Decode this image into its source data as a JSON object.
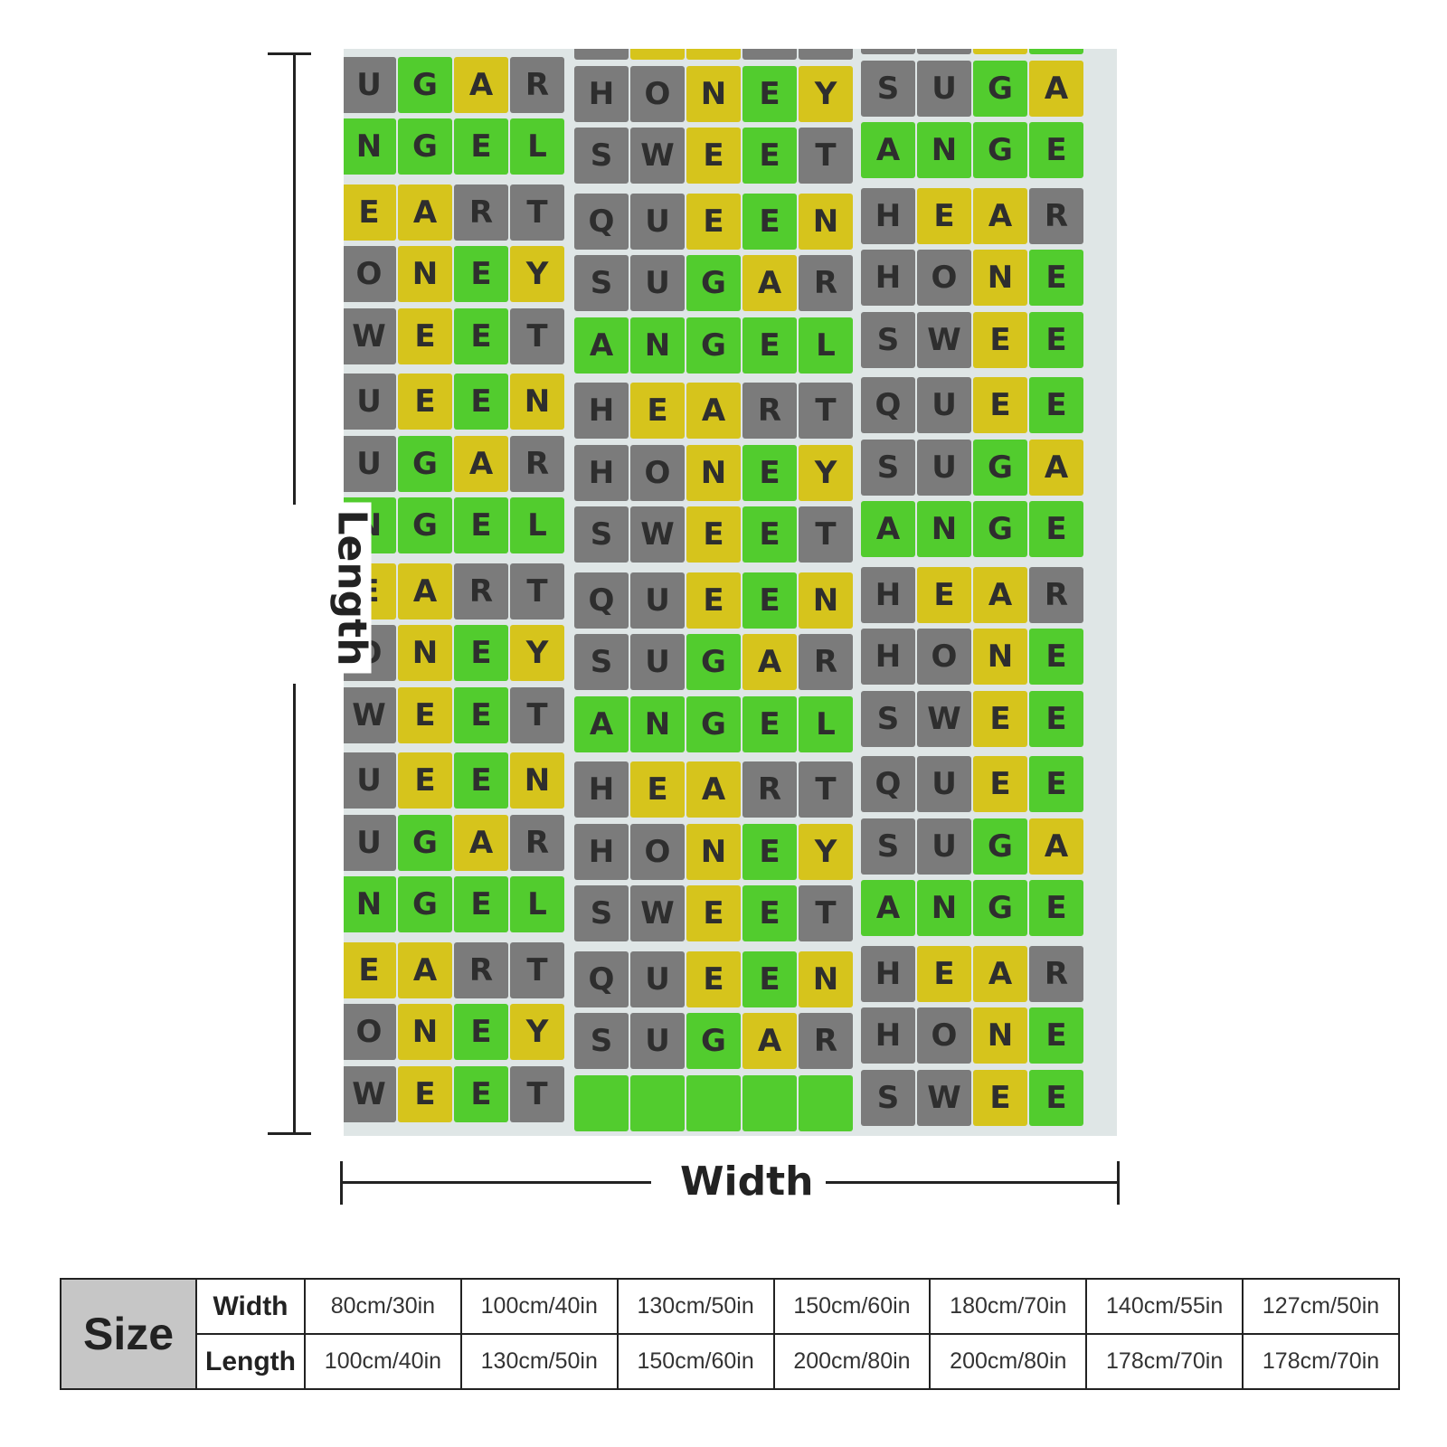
{
  "blanket": {
    "palette": {
      "G": "#52cc2e",
      "Y": "#d6c41c",
      "X": "#7b7b7b"
    },
    "columns": [
      {
        "tiles": [
          [
            [
              "G",
              "Y",
              "G",
              "X"
            ],
            [
              "",
              "",
              "",
              ""
            ]
          ],
          [
            [
              "U",
              "G",
              "A",
              "R"
            ],
            [
              "X",
              "G",
              "Y",
              "X"
            ]
          ],
          [
            [
              "N",
              "G",
              "E",
              "L"
            ],
            [
              "G",
              "G",
              "G",
              "G"
            ]
          ],
          [
            [
              "E",
              "A",
              "R",
              "T"
            ],
            [
              "Y",
              "Y",
              "X",
              "X"
            ]
          ],
          [
            [
              "O",
              "N",
              "E",
              "Y"
            ],
            [
              "X",
              "Y",
              "G",
              "Y"
            ]
          ],
          [
            [
              "W",
              "E",
              "E",
              "T"
            ],
            [
              "X",
              "Y",
              "G",
              "X"
            ]
          ],
          [
            [
              "U",
              "E",
              "E",
              "N"
            ],
            [
              "X",
              "Y",
              "G",
              "Y"
            ]
          ],
          [
            [
              "U",
              "G",
              "A",
              "R"
            ],
            [
              "X",
              "G",
              "Y",
              "X"
            ]
          ],
          [
            [
              "N",
              "G",
              "E",
              "L"
            ],
            [
              "G",
              "G",
              "G",
              "G"
            ]
          ],
          [
            [
              "E",
              "A",
              "R",
              "T"
            ],
            [
              "Y",
              "Y",
              "X",
              "X"
            ]
          ],
          [
            [
              "O",
              "N",
              "E",
              "Y"
            ],
            [
              "X",
              "Y",
              "G",
              "Y"
            ]
          ],
          [
            [
              "W",
              "E",
              "E",
              "T"
            ],
            [
              "X",
              "Y",
              "G",
              "X"
            ]
          ],
          [
            [
              "U",
              "E",
              "E",
              "N"
            ],
            [
              "X",
              "Y",
              "G",
              "Y"
            ]
          ],
          [
            [
              "U",
              "G",
              "A",
              "R"
            ],
            [
              "X",
              "G",
              "Y",
              "X"
            ]
          ],
          [
            [
              "N",
              "G",
              "E",
              "L"
            ],
            [
              "G",
              "G",
              "G",
              "G"
            ]
          ],
          [
            [
              "E",
              "A",
              "R",
              "T"
            ],
            [
              "Y",
              "Y",
              "X",
              "X"
            ]
          ],
          [
            [
              "O",
              "N",
              "E",
              "Y"
            ],
            [
              "X",
              "Y",
              "G",
              "Y"
            ]
          ],
          [
            [
              "W",
              "E",
              "E",
              "T"
            ],
            [
              "X",
              "Y",
              "G",
              "X"
            ]
          ]
        ]
      },
      {
        "tiles": [
          [
            [
              "",
              "",
              "",
              "",
              ""
            ],
            [
              "X",
              "Y",
              "Y",
              "X",
              "X"
            ]
          ],
          [
            [
              "H",
              "O",
              "N",
              "E",
              "Y"
            ],
            [
              "X",
              "X",
              "Y",
              "G",
              "Y"
            ]
          ],
          [
            [
              "S",
              "W",
              "E",
              "E",
              "T"
            ],
            [
              "X",
              "X",
              "Y",
              "G",
              "X"
            ]
          ],
          [
            [
              "Q",
              "U",
              "E",
              "E",
              "N"
            ],
            [
              "X",
              "X",
              "Y",
              "G",
              "Y"
            ]
          ],
          [
            [
              "S",
              "U",
              "G",
              "A",
              "R"
            ],
            [
              "X",
              "X",
              "G",
              "Y",
              "X"
            ]
          ],
          [
            [
              "A",
              "N",
              "G",
              "E",
              "L"
            ],
            [
              "G",
              "G",
              "G",
              "G",
              "G"
            ]
          ],
          [
            [
              "H",
              "E",
              "A",
              "R",
              "T"
            ],
            [
              "X",
              "Y",
              "Y",
              "X",
              "X"
            ]
          ],
          [
            [
              "H",
              "O",
              "N",
              "E",
              "Y"
            ],
            [
              "X",
              "X",
              "Y",
              "G",
              "Y"
            ]
          ],
          [
            [
              "S",
              "W",
              "E",
              "E",
              "T"
            ],
            [
              "X",
              "X",
              "Y",
              "G",
              "X"
            ]
          ],
          [
            [
              "Q",
              "U",
              "E",
              "E",
              "N"
            ],
            [
              "X",
              "X",
              "Y",
              "G",
              "Y"
            ]
          ],
          [
            [
              "S",
              "U",
              "G",
              "A",
              "R"
            ],
            [
              "X",
              "X",
              "G",
              "Y",
              "X"
            ]
          ],
          [
            [
              "A",
              "N",
              "G",
              "E",
              "L"
            ],
            [
              "G",
              "G",
              "G",
              "G",
              "G"
            ]
          ],
          [
            [
              "H",
              "E",
              "A",
              "R",
              "T"
            ],
            [
              "X",
              "Y",
              "Y",
              "X",
              "X"
            ]
          ],
          [
            [
              "H",
              "O",
              "N",
              "E",
              "Y"
            ],
            [
              "X",
              "X",
              "Y",
              "G",
              "Y"
            ]
          ],
          [
            [
              "S",
              "W",
              "E",
              "E",
              "T"
            ],
            [
              "X",
              "X",
              "Y",
              "G",
              "X"
            ]
          ],
          [
            [
              "Q",
              "U",
              "E",
              "E",
              "N"
            ],
            [
              "X",
              "X",
              "Y",
              "G",
              "Y"
            ]
          ],
          [
            [
              "S",
              "U",
              "G",
              "A",
              "R"
            ],
            [
              "X",
              "X",
              "G",
              "Y",
              "X"
            ]
          ],
          [
            [
              "",
              "",
              "",
              "",
              ""
            ],
            [
              "G",
              "G",
              "G",
              "G",
              "G"
            ]
          ]
        ]
      },
      {
        "tiles": [
          [
            [
              "",
              "",
              "",
              ""
            ],
            [
              "X",
              "X",
              "Y",
              "G"
            ]
          ],
          [
            [
              "S",
              "U",
              "G",
              "A"
            ],
            [
              "X",
              "X",
              "G",
              "Y"
            ]
          ],
          [
            [
              "A",
              "N",
              "G",
              "E"
            ],
            [
              "G",
              "G",
              "G",
              "G"
            ]
          ],
          [
            [
              "H",
              "E",
              "A",
              "R"
            ],
            [
              "X",
              "Y",
              "Y",
              "X"
            ]
          ],
          [
            [
              "H",
              "O",
              "N",
              "E"
            ],
            [
              "X",
              "X",
              "Y",
              "G"
            ]
          ],
          [
            [
              "S",
              "W",
              "E",
              "E"
            ],
            [
              "X",
              "X",
              "Y",
              "G"
            ]
          ],
          [
            [
              "Q",
              "U",
              "E",
              "E"
            ],
            [
              "X",
              "X",
              "Y",
              "G"
            ]
          ],
          [
            [
              "S",
              "U",
              "G",
              "A"
            ],
            [
              "X",
              "X",
              "G",
              "Y"
            ]
          ],
          [
            [
              "A",
              "N",
              "G",
              "E"
            ],
            [
              "G",
              "G",
              "G",
              "G"
            ]
          ],
          [
            [
              "H",
              "E",
              "A",
              "R"
            ],
            [
              "X",
              "Y",
              "Y",
              "X"
            ]
          ],
          [
            [
              "H",
              "O",
              "N",
              "E"
            ],
            [
              "X",
              "X",
              "Y",
              "G"
            ]
          ],
          [
            [
              "S",
              "W",
              "E",
              "E"
            ],
            [
              "X",
              "X",
              "Y",
              "G"
            ]
          ],
          [
            [
              "Q",
              "U",
              "E",
              "E"
            ],
            [
              "X",
              "X",
              "Y",
              "G"
            ]
          ],
          [
            [
              "S",
              "U",
              "G",
              "A"
            ],
            [
              "X",
              "X",
              "G",
              "Y"
            ]
          ],
          [
            [
              "A",
              "N",
              "G",
              "E"
            ],
            [
              "G",
              "G",
              "G",
              "G"
            ]
          ],
          [
            [
              "H",
              "E",
              "A",
              "R"
            ],
            [
              "X",
              "Y",
              "Y",
              "X"
            ]
          ],
          [
            [
              "H",
              "O",
              "N",
              "E"
            ],
            [
              "X",
              "X",
              "Y",
              "G"
            ]
          ],
          [
            [
              "S",
              "W",
              "E",
              "E"
            ],
            [
              "X",
              "X",
              "Y",
              "G"
            ]
          ]
        ]
      }
    ]
  },
  "dimensions": {
    "length_label": "Length",
    "width_label": "Width"
  },
  "size_table": {
    "title": "Size",
    "rows": [
      {
        "label": "Width",
        "values": [
          "80cm/30in",
          "100cm/40in",
          "130cm/50in",
          "150cm/60in",
          "180cm/70in",
          "140cm/55in",
          "127cm/50in"
        ]
      },
      {
        "label": "Length",
        "values": [
          "100cm/40in",
          "130cm/50in",
          "150cm/60in",
          "200cm/80in",
          "200cm/80in",
          "178cm/70in",
          "178cm/70in"
        ]
      }
    ]
  }
}
